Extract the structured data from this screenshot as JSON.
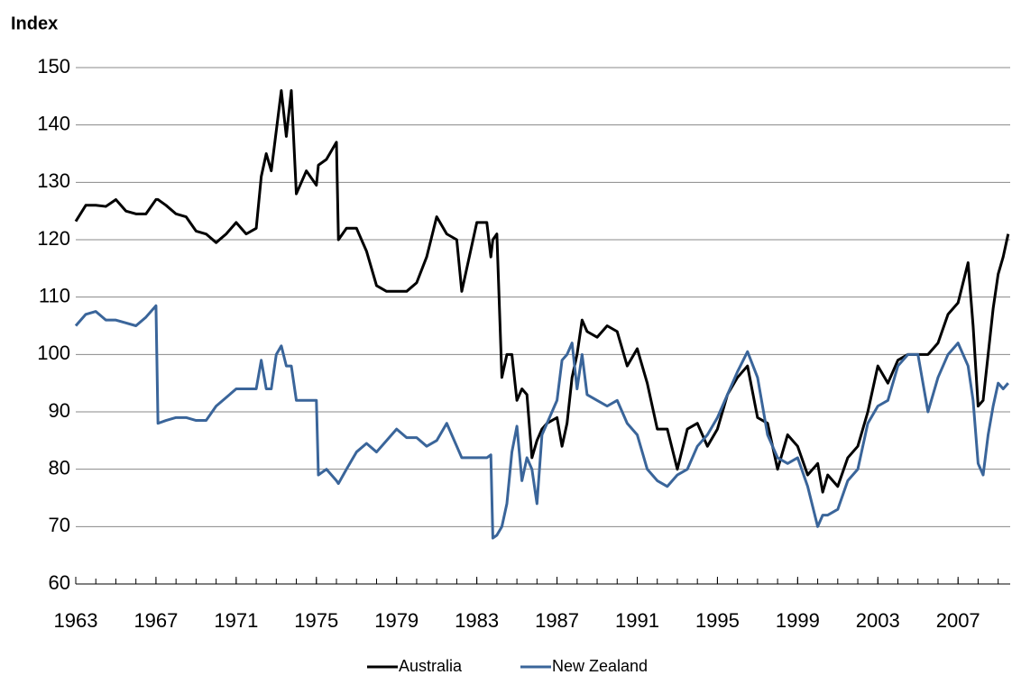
{
  "chart_data": {
    "type": "line",
    "y_label": "Index",
    "x": [
      1963.0,
      1963.5,
      1964.0,
      1964.5,
      1965.0,
      1965.5,
      1966.0,
      1966.5,
      1967.0,
      1967.1,
      1967.5,
      1968.0,
      1968.5,
      1969.0,
      1969.5,
      1970.0,
      1970.5,
      1971.0,
      1971.5,
      1972.0,
      1972.25,
      1972.5,
      1972.75,
      1973.0,
      1973.25,
      1973.5,
      1973.75,
      1974.0,
      1974.5,
      1975.0,
      1975.1,
      1975.5,
      1976.0,
      1976.1,
      1976.5,
      1977.0,
      1977.5,
      1978.0,
      1978.5,
      1979.0,
      1979.5,
      1980.0,
      1980.5,
      1981.0,
      1981.5,
      1982.0,
      1982.25,
      1982.5,
      1983.0,
      1983.5,
      1983.7,
      1983.8,
      1984.0,
      1984.25,
      1984.5,
      1984.75,
      1985.0,
      1985.25,
      1985.5,
      1985.75,
      1986.0,
      1986.25,
      1986.5,
      1987.0,
      1987.25,
      1987.5,
      1987.75,
      1988.0,
      1988.25,
      1988.5,
      1989.0,
      1989.5,
      1990.0,
      1990.5,
      1991.0,
      1991.5,
      1992.0,
      1992.5,
      1993.0,
      1993.5,
      1994.0,
      1994.5,
      1995.0,
      1995.5,
      1996.0,
      1996.5,
      1997.0,
      1997.5,
      1998.0,
      1998.5,
      1999.0,
      1999.5,
      2000.0,
      2000.25,
      2000.5,
      2001.0,
      2001.5,
      2002.0,
      2002.5,
      2003.0,
      2003.5,
      2004.0,
      2004.5,
      2005.0,
      2005.5,
      2006.0,
      2006.5,
      2007.0,
      2007.5,
      2007.75,
      2008.0,
      2008.25,
      2008.5,
      2008.75,
      2009.0,
      2009.25,
      2009.5
    ],
    "series": [
      {
        "name": "Australia",
        "color": "#000000",
        "values": [
          123.2,
          126,
          126,
          125.8,
          127,
          125,
          124.5,
          124.5,
          127,
          127,
          126,
          124.5,
          124,
          121.5,
          121,
          119.5,
          121,
          123,
          121,
          122,
          131,
          135,
          132,
          139,
          146,
          138,
          146,
          128,
          132,
          129.5,
          133,
          134,
          137,
          120,
          122,
          122,
          118,
          112,
          111,
          111,
          111,
          112.5,
          117,
          124,
          121,
          120,
          111,
          115,
          123,
          123,
          117,
          120,
          121,
          96,
          100,
          100,
          92,
          94,
          93,
          82,
          85,
          87,
          88,
          89,
          84,
          88,
          96,
          100,
          106,
          104,
          103,
          105,
          104,
          98,
          101,
          95,
          87,
          87,
          80,
          87,
          88,
          84,
          87,
          93,
          96,
          98,
          89,
          88,
          80,
          86,
          84,
          79,
          81,
          76,
          79,
          77,
          82,
          84,
          90,
          98,
          95,
          99,
          100,
          100,
          100,
          102,
          107,
          109,
          116,
          105,
          91,
          92,
          100,
          108,
          114,
          117,
          121
        ]
      },
      {
        "name": "New Zealand",
        "color": "#3a659a",
        "values": [
          105,
          107,
          107.5,
          106,
          106,
          105.5,
          105,
          106.5,
          108.5,
          88,
          88.5,
          89,
          89,
          88.5,
          88.5,
          91,
          92.5,
          94,
          94,
          94,
          99,
          94,
          94,
          100,
          101.5,
          98,
          98,
          92,
          92,
          92,
          79,
          80,
          78,
          77.5,
          80,
          83,
          84.5,
          83,
          85,
          87,
          85.5,
          85.5,
          84,
          85,
          88,
          84,
          82,
          82,
          82,
          82,
          82.5,
          68,
          68.5,
          70,
          74,
          83,
          87.5,
          78,
          82,
          80,
          74,
          86,
          88,
          92,
          99,
          100,
          102,
          94,
          100,
          93,
          92,
          91,
          92,
          88,
          86,
          80,
          78,
          77,
          79,
          80,
          84,
          86,
          89,
          93,
          97,
          100.5,
          96,
          86,
          82,
          81,
          82,
          77,
          70,
          72,
          72,
          73,
          78,
          80,
          88,
          91,
          92,
          98,
          100,
          100,
          90,
          96,
          100,
          102,
          98,
          92,
          81,
          79,
          86,
          91,
          95,
          94,
          95
        ]
      }
    ],
    "xlim": [
      1963,
      2009.6
    ],
    "xticks": [
      1963,
      1967,
      1971,
      1975,
      1979,
      1983,
      1987,
      1991,
      1995,
      1999,
      2003,
      2007
    ],
    "xminorticks": [
      1963,
      1964,
      1965,
      1966,
      1967,
      1968,
      1969,
      1970,
      1971,
      1972,
      1973,
      1974,
      1975,
      1976,
      1977,
      1978,
      1979,
      1980,
      1981,
      1982,
      1983,
      1984,
      1985,
      1986,
      1987,
      1988,
      1989,
      1990,
      1991,
      1992,
      1993,
      1994,
      1995,
      1996,
      1997,
      1998,
      1999,
      2000,
      2001,
      2002,
      2003,
      2004,
      2005,
      2006,
      2007,
      2008,
      2009
    ],
    "ylim": [
      60,
      150
    ],
    "yticks": [
      60,
      70,
      80,
      90,
      100,
      110,
      120,
      130,
      140,
      150
    ],
    "grid": true,
    "legend": "bottom"
  }
}
